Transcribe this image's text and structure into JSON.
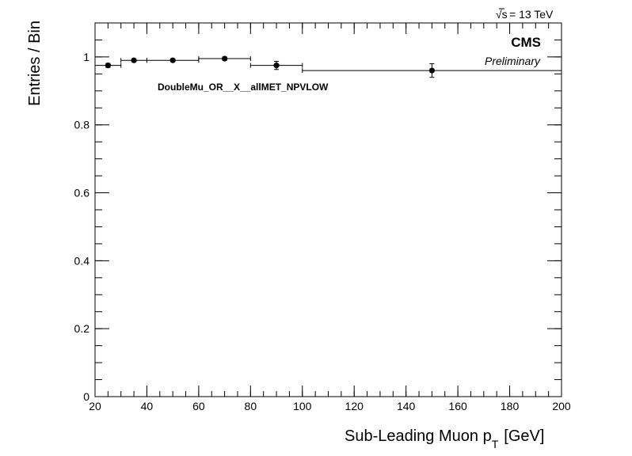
{
  "chart_data": {
    "type": "scatter",
    "energy_label": "= 13 TeV",
    "sqrt_symbol": "√s",
    "experiment": "CMS",
    "status": "Preliminary",
    "annotation": "DoubleMu_OR__X__allMET_NPVLOW",
    "ylabel": "Entries / Bin",
    "xlabel_main": "Sub-Leading Muon p",
    "xlabel_sub": "T",
    "xlabel_unit": "[GeV]",
    "xlim": [
      20,
      200
    ],
    "ylim": [
      0,
      1.1
    ],
    "x_ticks": [
      20,
      40,
      60,
      80,
      100,
      120,
      140,
      160,
      180,
      200
    ],
    "x_tick_labels": [
      "20",
      "40",
      "60",
      "80",
      "100",
      "120",
      "140",
      "160",
      "180",
      "200"
    ],
    "y_ticks": [
      0,
      0.2,
      0.4,
      0.6,
      0.8,
      1
    ],
    "y_tick_labels": [
      "0",
      "0.2",
      "0.4",
      "0.6",
      "0.8",
      "1"
    ],
    "points": [
      {
        "x": 25,
        "xlow": 20,
        "xhigh": 30,
        "y": 0.975,
        "err": 0.006
      },
      {
        "x": 35,
        "xlow": 30,
        "xhigh": 40,
        "y": 0.99,
        "err": 0.004
      },
      {
        "x": 50,
        "xlow": 40,
        "xhigh": 60,
        "y": 0.99,
        "err": 0.004
      },
      {
        "x": 70,
        "xlow": 60,
        "xhigh": 80,
        "y": 0.995,
        "err": 0.005
      },
      {
        "x": 90,
        "xlow": 80,
        "xhigh": 100,
        "y": 0.975,
        "err": 0.012
      },
      {
        "x": 150,
        "xlow": 100,
        "xhigh": 200,
        "y": 0.96,
        "err": 0.02
      }
    ],
    "marker_color": "#000000"
  }
}
